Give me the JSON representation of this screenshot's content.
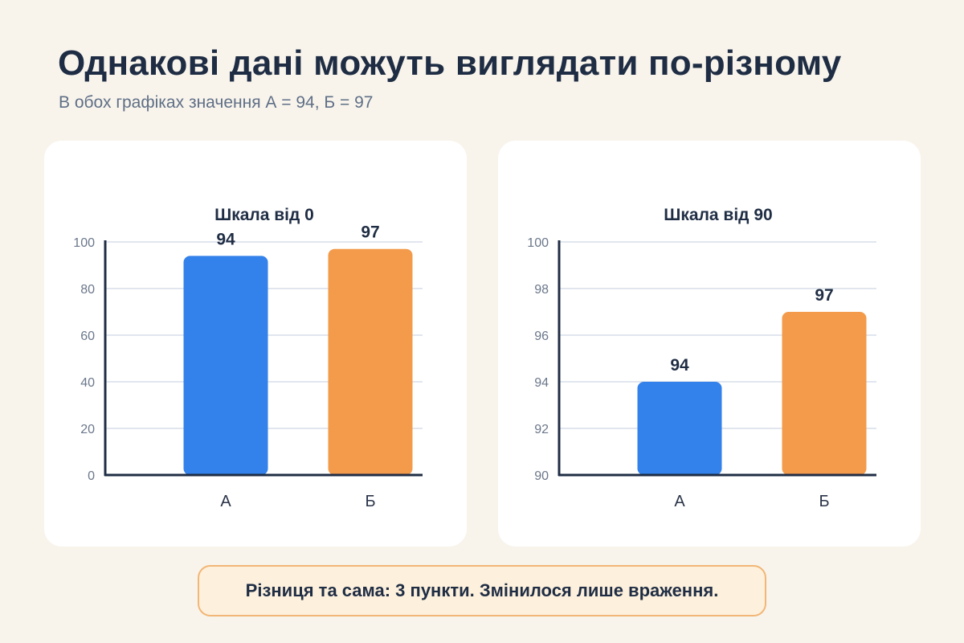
{
  "header": {
    "title": "Однакові дані можуть виглядати по-різному",
    "subtitle": "В обох графіках значення А = 94, Б = 97"
  },
  "chart_data": [
    {
      "type": "bar",
      "title": "Шкала від 0",
      "categories": [
        "А",
        "Б"
      ],
      "values": [
        94,
        97
      ],
      "colors": [
        "#3381ea",
        "#f39b4b"
      ],
      "ylim": [
        0,
        100
      ],
      "yticks": [
        0,
        20,
        40,
        60,
        80,
        100
      ],
      "grid": true
    },
    {
      "type": "bar",
      "title": "Шкала від 90",
      "categories": [
        "А",
        "Б"
      ],
      "values": [
        94,
        97
      ],
      "colors": [
        "#3381ea",
        "#f39b4b"
      ],
      "ylim": [
        90,
        100
      ],
      "yticks": [
        90,
        92,
        94,
        96,
        98,
        100
      ],
      "grid": true
    }
  ],
  "callout": {
    "text": "Різниця та сама: 3 пункти. Змінилося лише враження."
  }
}
